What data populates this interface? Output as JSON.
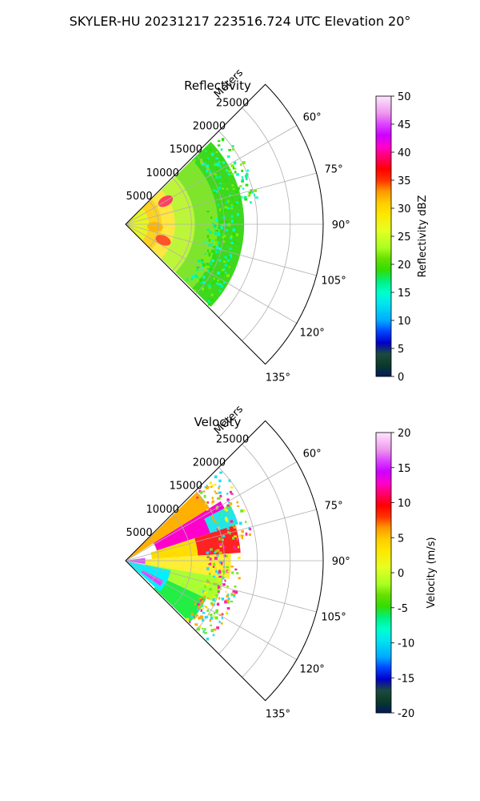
{
  "suptitle": "SKYLER-HU  20231217  223516.724 UTC Elevation 20°",
  "chart_data": [
    {
      "type": "heatmap",
      "subtype": "polar-sector-ppi",
      "title": "Reflectivity",
      "radial_label": "Meters",
      "r_ticks": [
        "5000",
        "10000",
        "15000",
        "20000",
        "25000"
      ],
      "r_max": 30000,
      "theta_ticks": [
        "60°",
        "75°",
        "90°",
        "105°",
        "120°",
        "135°"
      ],
      "theta_range_deg": [
        45,
        135
      ],
      "grid": true,
      "colorbar": {
        "label": "Reflectivity dBZ",
        "ticks": [
          "0",
          "5",
          "10",
          "15",
          "20",
          "25",
          "30",
          "35",
          "40",
          "45",
          "50"
        ],
        "vmin": 0,
        "vmax": 50,
        "stops": [
          [
            0,
            "#02195a"
          ],
          [
            0.04,
            "#0a3a2a"
          ],
          [
            0.08,
            "#1d4a3c"
          ],
          [
            0.12,
            "#0000c8"
          ],
          [
            0.16,
            "#0044ff"
          ],
          [
            0.2,
            "#00aaff"
          ],
          [
            0.26,
            "#00e6f0"
          ],
          [
            0.3,
            "#00ffcc"
          ],
          [
            0.34,
            "#00f080"
          ],
          [
            0.38,
            "#33dd00"
          ],
          [
            0.42,
            "#66e000"
          ],
          [
            0.46,
            "#aaff22"
          ],
          [
            0.52,
            "#e6ff22"
          ],
          [
            0.58,
            "#ffe600"
          ],
          [
            0.62,
            "#ffcc00"
          ],
          [
            0.66,
            "#ff9900"
          ],
          [
            0.7,
            "#ff3300"
          ],
          [
            0.74,
            "#ff0000"
          ],
          [
            0.78,
            "#ff0066"
          ],
          [
            0.82,
            "#ff00cc"
          ],
          [
            0.86,
            "#cc00ff"
          ],
          [
            0.9,
            "#dd44ff"
          ],
          [
            0.94,
            "#ee99ee"
          ],
          [
            1,
            "#ffe6ff"
          ]
        ]
      },
      "echo": {
        "max_range_m": 18000,
        "theta_extent_deg": [
          46,
          134
        ],
        "bands": [
          {
            "r": [
              0,
              3500
            ],
            "color": "#e6f522"
          },
          {
            "r": [
              3500,
              5500
            ],
            "color": "#ffd21e"
          },
          {
            "r": [
              5500,
              7500
            ],
            "color": "#ffe640"
          },
          {
            "r": [
              7500,
              10500
            ],
            "color": "#bdf53a"
          },
          {
            "r": [
              10500,
              14000
            ],
            "color": "#7ee52c"
          },
          {
            "r": [
              14000,
              18000
            ],
            "color": "#3ed81e"
          }
        ],
        "cores": [
          {
            "r": 7000,
            "theta": 60,
            "value": 40,
            "color": "#ff2266"
          },
          {
            "r": 6200,
            "theta": 113,
            "value": 36,
            "color": "#ff3a22"
          },
          {
            "r": 4500,
            "theta": 95,
            "value": 30,
            "color": "#ffb000"
          }
        ],
        "speckle_colors": [
          "#00f5a0",
          "#27e000",
          "#7df000",
          "#00ffd0"
        ]
      }
    },
    {
      "type": "heatmap",
      "subtype": "polar-sector-ppi",
      "title": "Velocity",
      "radial_label": "Meters",
      "r_ticks": [
        "5000",
        "10000",
        "15000",
        "20000",
        "25000"
      ],
      "r_max": 30000,
      "theta_ticks": [
        "60°",
        "75°",
        "90°",
        "105°",
        "120°",
        "135°"
      ],
      "theta_range_deg": [
        45,
        135
      ],
      "grid": true,
      "colorbar": {
        "label": "Velocity (m/s)",
        "ticks": [
          "-20",
          "-15",
          "-10",
          "-5",
          "0",
          "5",
          "10",
          "15",
          "20"
        ],
        "vmin": -20,
        "vmax": 20,
        "stops": [
          [
            0,
            "#02195a"
          ],
          [
            0.04,
            "#0a3a2a"
          ],
          [
            0.08,
            "#1d4a3c"
          ],
          [
            0.12,
            "#0000c8"
          ],
          [
            0.16,
            "#0044ff"
          ],
          [
            0.2,
            "#00aaff"
          ],
          [
            0.26,
            "#00e6f0"
          ],
          [
            0.3,
            "#00ffcc"
          ],
          [
            0.34,
            "#00f080"
          ],
          [
            0.38,
            "#33dd00"
          ],
          [
            0.42,
            "#66e000"
          ],
          [
            0.46,
            "#aaff22"
          ],
          [
            0.52,
            "#e6ff22"
          ],
          [
            0.58,
            "#ffe600"
          ],
          [
            0.62,
            "#ffcc00"
          ],
          [
            0.66,
            "#ff9900"
          ],
          [
            0.7,
            "#ff3300"
          ],
          [
            0.74,
            "#ff0000"
          ],
          [
            0.78,
            "#ff0066"
          ],
          [
            0.82,
            "#ff00cc"
          ],
          [
            0.86,
            "#cc00ff"
          ],
          [
            0.9,
            "#dd44ff"
          ],
          [
            0.94,
            "#ee99ee"
          ],
          [
            1,
            "#ffe6ff"
          ]
        ]
      },
      "echo": {
        "max_range_m": 18000,
        "theta_extent_deg": [
          46,
          134
        ],
        "sectors": [
          {
            "theta": [
              46,
              58
            ],
            "r": [
              0,
              15000
            ],
            "color": "#ffb000"
          },
          {
            "theta": [
              58,
              72
            ],
            "r": [
              5000,
              17000
            ],
            "color": "#ff00cc"
          },
          {
            "theta": [
              62,
              72
            ],
            "r": [
              13500,
              18000
            ],
            "color": "#22e6e6"
          },
          {
            "theta": [
              72,
              86
            ],
            "r": [
              11000,
              17500
            ],
            "color": "#ff2222"
          },
          {
            "theta": [
              72,
              86
            ],
            "r": [
              4000,
              11000
            ],
            "color": "#ffdd00"
          },
          {
            "theta": [
              86,
              100
            ],
            "r": [
              2000,
              16000
            ],
            "color": "#ffee33"
          },
          {
            "theta": [
              100,
              115
            ],
            "r": [
              3000,
              15000
            ],
            "color": "#aaff33"
          },
          {
            "theta": [
              115,
              134
            ],
            "r": [
              6000,
              13500
            ],
            "color": "#22ee44"
          },
          {
            "theta": [
              102,
              132
            ],
            "r": [
              0,
              7000
            ],
            "color": "#00f0ff"
          },
          {
            "theta": [
              118,
              126
            ],
            "r": [
              3000,
              6500
            ],
            "color": "#dd44ff"
          },
          {
            "theta": [
              82,
              100
            ],
            "r": [
              0,
              3000
            ],
            "color": "#dd55ff"
          }
        ],
        "speckle_colors": [
          "#ffee00",
          "#66ee22",
          "#22ddff",
          "#ff22aa",
          "#ffaa00"
        ]
      }
    }
  ]
}
